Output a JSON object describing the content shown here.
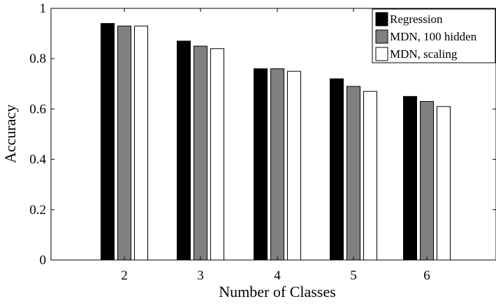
{
  "chart_data": {
    "type": "bar",
    "xlabel": "Number of Classes",
    "ylabel": "Accuracy",
    "categories": [
      "2",
      "3",
      "4",
      "5",
      "6"
    ],
    "series": [
      {
        "name": "Regression",
        "color": "#000000",
        "values": [
          0.94,
          0.87,
          0.76,
          0.72,
          0.65
        ]
      },
      {
        "name": "MDN, 100 hidden",
        "color": "#808080",
        "values": [
          0.93,
          0.85,
          0.76,
          0.69,
          0.63
        ]
      },
      {
        "name": "MDN, scaling",
        "color": "#ffffff",
        "values": [
          0.93,
          0.84,
          0.75,
          0.67,
          0.61
        ]
      }
    ],
    "ylim": [
      0,
      1
    ],
    "yticks": [
      "0",
      "0.2",
      "0.4",
      "0.6",
      "0.8",
      "1"
    ],
    "legend_position": "top-right",
    "grid": false
  }
}
